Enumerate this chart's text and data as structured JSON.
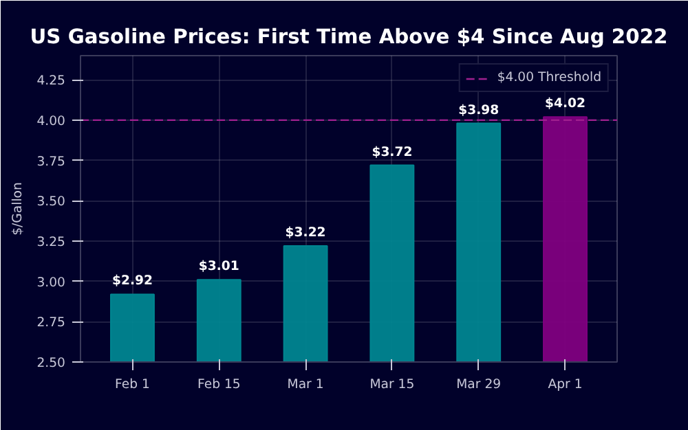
{
  "chart_data": {
    "type": "bar",
    "title": "US Gasoline Prices: First Time Above $4 Since Aug 2022",
    "ylabel": "$/Gallon",
    "categories": [
      "Feb 1",
      "Feb 15",
      "Mar 1",
      "Mar 15",
      "Mar 29",
      "Apr 1"
    ],
    "values": [
      2.92,
      3.01,
      3.22,
      3.72,
      3.98,
      4.02
    ],
    "value_labels": [
      "$2.92",
      "$3.01",
      "$3.22",
      "$3.72",
      "$3.98",
      "$4.02"
    ],
    "colors": [
      "#008590",
      "#008590",
      "#008590",
      "#008590",
      "#008590",
      "#800080"
    ],
    "ylim": [
      2.5,
      4.4
    ],
    "yticks": [
      {
        "value": 2.5,
        "label": "2.50"
      },
      {
        "value": 2.75,
        "label": "2.75"
      },
      {
        "value": 3.0,
        "label": "3.00"
      },
      {
        "value": 3.25,
        "label": "3.25"
      },
      {
        "value": 3.5,
        "label": "3.50"
      },
      {
        "value": 3.75,
        "label": "3.75"
      },
      {
        "value": 4.0,
        "label": "4.00"
      },
      {
        "value": 4.25,
        "label": "4.25"
      }
    ],
    "ref_lines": [
      {
        "axis": "y",
        "value": 4.0,
        "label": "$4.00 Threshold",
        "color": "#a0208f",
        "line_style": "dashed"
      }
    ],
    "grid": true,
    "legend": "top right"
  }
}
